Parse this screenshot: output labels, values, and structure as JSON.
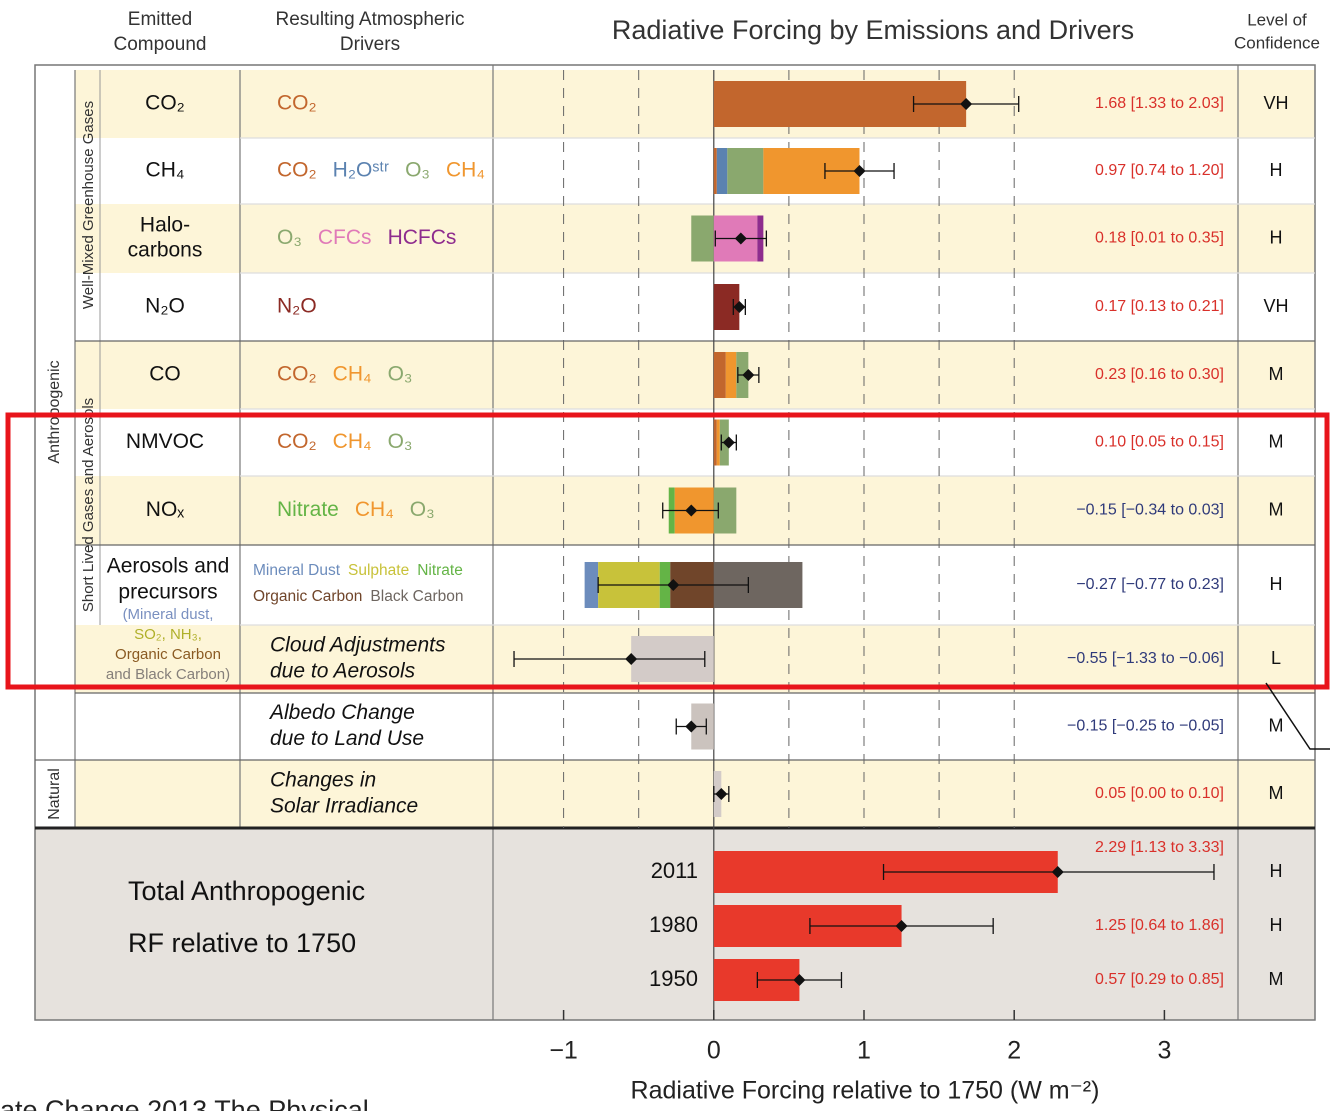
{
  "header": {
    "compound": [
      "Emitted",
      "Compound"
    ],
    "drivers": [
      "Resulting Atmospheric",
      "Drivers"
    ],
    "title": "Radiative Forcing by Emissions and Drivers",
    "confidence": [
      "Level of",
      "Confidence"
    ]
  },
  "groups": {
    "anthropogenic": "Anthropogenic",
    "natural": "Natural",
    "wmghg": "Well-Mixed Greenhouse Gases",
    "slcf": "Short Lived Gases and Aerosols"
  },
  "footer": "ate Change 2013  The Physical",
  "chart_data": {
    "type": "bar",
    "xlabel": "Radiative Forcing relative to 1750 (W m⁻²)",
    "xlim": [
      -1.47,
      3.49
    ],
    "xticks": [
      {
        "value": -1,
        "label": "−1"
      },
      0,
      1,
      2,
      3
    ],
    "xgrid": [
      -1,
      -0.5,
      0.5,
      1,
      1.5,
      2
    ],
    "positive_label_color": "#d9302a",
    "negative_label_color": "#2f3a7a",
    "rows": [
      {
        "compound": [
          {
            "text": "CO₂",
            "color": "#111"
          }
        ],
        "segments": [
          {
            "name": "CO₂",
            "color": "#c2662d",
            "value": 1.68
          }
        ],
        "value": 1.68,
        "ci": [
          1.33,
          2.03
        ],
        "value_label": "1.68 [1.33 to 2.03]",
        "confidence": "VH"
      },
      {
        "compound": [
          {
            "text": "CH₄",
            "color": "#111"
          }
        ],
        "segments": [
          {
            "name": "CO₂",
            "color": "#c2662d",
            "value": 0.02
          },
          {
            "name": "H₂Oˢᵗʳ",
            "color": "#5b82b0",
            "value": 0.07
          },
          {
            "name": "O₃",
            "color": "#8aa86e",
            "value": 0.24
          },
          {
            "name": "CH₄",
            "color": "#f0962e",
            "value": 0.64
          }
        ],
        "value": 0.97,
        "ci": [
          0.74,
          1.2
        ],
        "value_label": "0.97 [0.74 to 1.20]",
        "confidence": "H"
      },
      {
        "compound": [
          {
            "text": "Halo-",
            "color": "#111"
          },
          {
            "text": "carbons",
            "color": "#111"
          }
        ],
        "segments": [
          {
            "name": "O₃",
            "color": "#8aa86e",
            "value": -0.15
          },
          {
            "name": "CFCs",
            "color": "#e07ab8",
            "value": 0.29
          },
          {
            "name": "HCFCs",
            "color": "#8e2c8e",
            "value": 0.04
          }
        ],
        "value": 0.18,
        "ci": [
          0.01,
          0.35
        ],
        "value_label": "0.18 [0.01 to 0.35]",
        "confidence": "H"
      },
      {
        "compound": [
          {
            "text": "N₂O",
            "color": "#111"
          }
        ],
        "segments": [
          {
            "name": "N₂O",
            "color": "#8b2a24",
            "value": 0.17
          }
        ],
        "value": 0.17,
        "ci": [
          0.13,
          0.21
        ],
        "value_label": "0.17 [0.13 to 0.21]",
        "confidence": "VH"
      },
      {
        "compound": [
          {
            "text": "CO",
            "color": "#111"
          }
        ],
        "segments": [
          {
            "name": "CO₂",
            "color": "#c2662d",
            "value": 0.08
          },
          {
            "name": "CH₄",
            "color": "#f0962e",
            "value": 0.07
          },
          {
            "name": "O₃",
            "color": "#8aa86e",
            "value": 0.08
          }
        ],
        "value": 0.23,
        "ci": [
          0.16,
          0.3
        ],
        "value_label": "0.23 [0.16 to 0.30]",
        "confidence": "M"
      },
      {
        "compound": [
          {
            "text": "NMVOC",
            "color": "#111"
          }
        ],
        "segments": [
          {
            "name": "CO₂",
            "color": "#c2662d",
            "value": 0.02
          },
          {
            "name": "CH₄",
            "color": "#f0962e",
            "value": 0.02
          },
          {
            "name": "O₃",
            "color": "#8aa86e",
            "value": 0.06
          }
        ],
        "value": 0.1,
        "ci": [
          0.05,
          0.15
        ],
        "value_label": "0.10 [0.05 to 0.15]",
        "confidence": "M"
      },
      {
        "compound": [
          {
            "text": "NOₓ",
            "color": "#111"
          }
        ],
        "segments": [
          {
            "name": "Nitrate",
            "color": "#64b446",
            "value": -0.04
          },
          {
            "name": "CH₄",
            "color": "#f0962e",
            "value": -0.26
          },
          {
            "name": "O₃",
            "color": "#8aa86e",
            "value": 0.15
          }
        ],
        "value": -0.15,
        "ci": [
          -0.34,
          0.03
        ],
        "value_label": "−0.15 [−0.34 to 0.03]",
        "confidence": "M"
      },
      {
        "compound": [
          {
            "text": "Aerosols and",
            "color": "#111"
          },
          {
            "text": "precursors",
            "color": "#111"
          },
          {
            "text": "(Mineral dust,",
            "color": "#7a90c0"
          },
          {
            "text": "SO₂, NH₃,",
            "color": "#b0b02a"
          },
          {
            "text": "Organic Carbon",
            "color": "#8a5a22"
          },
          {
            "text": "and Black Carbon)",
            "color": "#857f7a"
          }
        ],
        "segments": [
          {
            "name": "Mineral Dust",
            "color": "#6c8cbc",
            "value": -0.09
          },
          {
            "name": "Sulphate",
            "color": "#c8c23a",
            "value": -0.41
          },
          {
            "name": "Nitrate",
            "color": "#64b446",
            "value": -0.07
          },
          {
            "name": "Organic Carbon",
            "color": "#70452a",
            "value": -0.29
          },
          {
            "name": "Black Carbon",
            "color": "#6e6660",
            "value": 0.59
          }
        ],
        "value": -0.27,
        "ci": [
          -0.77,
          0.23
        ],
        "value_label": "−0.27 [−0.77 to 0.23]",
        "confidence": "H"
      },
      {
        "driver": [
          "Cloud Adjustments",
          "due to Aerosols"
        ],
        "color": "#d3cbc8",
        "value": -0.55,
        "ci": [
          -1.33,
          -0.06
        ],
        "value_label": "−0.55 [−1.33 to −0.06]",
        "confidence": "L"
      },
      {
        "driver": [
          "Albedo Change",
          "due to Land Use"
        ],
        "color": "#cbc3be",
        "value": -0.15,
        "ci": [
          -0.25,
          -0.05
        ],
        "value_label": "−0.15 [−0.25 to −0.05]",
        "confidence": "M"
      },
      {
        "driver": [
          "Changes in",
          "Solar Irradiance"
        ],
        "color": "#d3cbc8",
        "value": 0.05,
        "ci": [
          0.0,
          0.1
        ],
        "value_label": "0.05 [0.00 to 0.10]",
        "confidence": "M"
      }
    ],
    "totals": {
      "label": [
        "Total Anthropogenic",
        "RF relative to 1750"
      ],
      "color": "#e8392b",
      "years": [
        {
          "year": "2011",
          "value": 2.29,
          "ci": [
            1.13,
            3.33
          ],
          "value_label": "2.29 [1.13 to 3.33]",
          "confidence": "H"
        },
        {
          "year": "1980",
          "value": 1.25,
          "ci": [
            0.64,
            1.86
          ],
          "value_label": "1.25 [0.64 to 1.86]",
          "confidence": "H"
        },
        {
          "year": "1950",
          "value": 0.57,
          "ci": [
            0.29,
            0.85
          ],
          "value_label": "0.57 [0.29 to 0.85]",
          "confidence": "M"
        }
      ]
    }
  }
}
